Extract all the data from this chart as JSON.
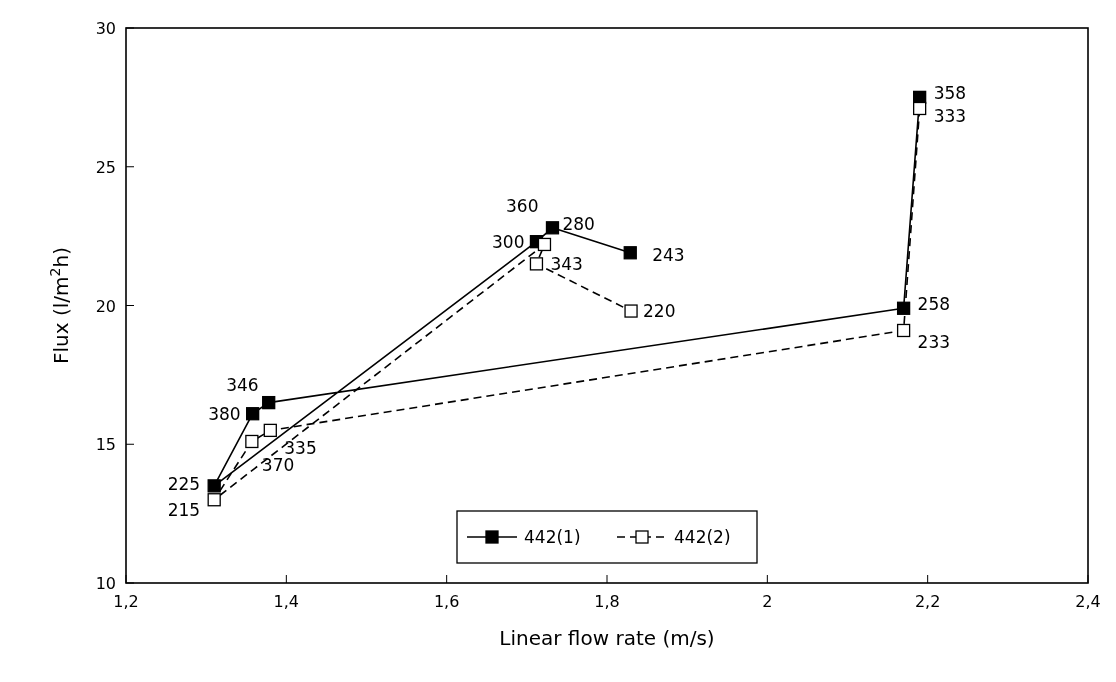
{
  "chart_data": {
    "type": "line",
    "xlabel": "Linear flow rate (m/s)",
    "ylabel": "Flux (l/m$^{2}$h)",
    "xlim": [
      1.2,
      2.4
    ],
    "xticks": [
      {
        "value": 1.2,
        "label": "1,2"
      },
      {
        "value": 1.4,
        "label": "1,4"
      },
      {
        "value": 1.6,
        "label": "1,6"
      },
      {
        "value": 1.8,
        "label": "1,8"
      },
      2,
      {
        "value": 2.2,
        "label": "2,2"
      },
      {
        "value": 2.4,
        "label": "2,4"
      }
    ],
    "ylim": [
      10,
      30
    ],
    "yticks": [
      10,
      15,
      20,
      25,
      30
    ],
    "grid": false,
    "legend": "bottom",
    "marker": "square",
    "series": [
      {
        "name": "442(1)",
        "color": "#000000",
        "line_style": "solid",
        "x": [
          2.19,
          2.17,
          1.378,
          1.358,
          1.31,
          1.712,
          1.732,
          1.829
        ],
        "values": [
          27.5,
          19.9,
          16.5,
          16.1,
          13.5,
          22.3,
          22.8,
          21.9
        ]
      },
      {
        "name": "442(2)",
        "color": "#000000",
        "line_style": "dashed",
        "x": [
          2.19,
          2.17,
          1.38,
          1.357,
          1.31,
          1.722,
          1.712,
          1.83
        ],
        "values": [
          27.1,
          19.1,
          15.5,
          15.1,
          13.0,
          22.2,
          21.5,
          19.8
        ]
      }
    ],
    "annotations": [
      {
        "text": "358",
        "x": 2.19,
        "y": 27.5
      },
      {
        "text": "258",
        "x": 2.17,
        "y": 19.9
      },
      {
        "text": "346",
        "x": 1.378,
        "y": 16.5
      },
      {
        "text": "380",
        "x": 1.358,
        "y": 16.1
      },
      {
        "text": "225",
        "x": 1.31,
        "y": 13.5
      },
      {
        "text": "300",
        "x": 1.712,
        "y": 22.3
      },
      {
        "text": "360",
        "x": 1.732,
        "y": 22.8
      },
      {
        "text": "243",
        "x": 1.829,
        "y": 21.9
      },
      {
        "text": "333",
        "x": 2.19,
        "y": 27.1
      },
      {
        "text": "233",
        "x": 2.17,
        "y": 19.1
      },
      {
        "text": "335",
        "x": 1.38,
        "y": 15.5
      },
      {
        "text": "370",
        "x": 1.357,
        "y": 15.1
      },
      {
        "text": "215",
        "x": 1.31,
        "y": 13.0
      },
      {
        "text": "280",
        "x": 1.722,
        "y": 22.2
      },
      {
        "text": "343",
        "x": 1.712,
        "y": 21.5
      },
      {
        "text": "220",
        "x": 1.83,
        "y": 19.8
      }
    ]
  }
}
